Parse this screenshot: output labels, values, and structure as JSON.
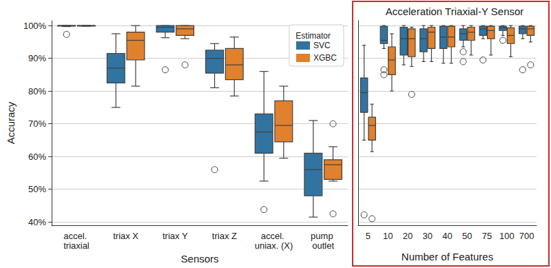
{
  "chart_data": [
    {
      "type": "boxplot",
      "x_label": "Sensors",
      "y_label": "Accuracy",
      "categories": [
        "accel. triaxial",
        "triax X",
        "triax Y",
        "triax Z",
        "accel. uniax. (X)",
        "pump outlet"
      ],
      "ylim": [
        39,
        101.5
      ],
      "yticks": [
        {
          "value": 40,
          "label": "40%"
        },
        {
          "value": 50,
          "label": "50%"
        },
        {
          "value": 60,
          "label": "60%"
        },
        {
          "value": 70,
          "label": "70%"
        },
        {
          "value": 80,
          "label": "80%"
        },
        {
          "value": 90,
          "label": "90%"
        },
        {
          "value": 100,
          "label": "100%"
        }
      ],
      "grid": true,
      "legend": "upper right",
      "legend_title": "Estimator",
      "series": [
        {
          "name": "SVC",
          "color": "#3274a1",
          "values": [
            [
              99.7,
              99.9,
              100,
              100,
              100
            ],
            [
              75,
              82.5,
              87,
              91.5,
              97.5
            ],
            [
              96.3,
              98,
              99.5,
              100,
              100
            ],
            [
              81,
              85.5,
              90,
              92.5,
              94.5
            ],
            [
              52.5,
              61,
              67.5,
              73,
              86
            ],
            [
              41.5,
              48,
              56,
              61,
              71
            ]
          ],
          "outliers": [
            [
              "accel. triaxial",
              97.3
            ],
            [
              "triax Y",
              86.5
            ],
            [
              "triax Z",
              56
            ],
            [
              "accel. uniax. (X)",
              43.8
            ]
          ]
        },
        {
          "name": "XGBC",
          "color": "#e1812c",
          "values": [
            [
              99.8,
              100,
              100,
              100,
              100
            ],
            [
              81.5,
              89.5,
              95.5,
              98,
              100
            ],
            [
              96,
              97,
              99,
              100,
              100
            ],
            [
              78.5,
              83.5,
              88,
              93,
              96.5
            ],
            [
              59.5,
              64.5,
              69.5,
              77,
              81.5
            ],
            [
              52.5,
              53,
              57.5,
              59,
              63
            ]
          ],
          "outliers": [
            [
              "triax Y",
              88
            ],
            [
              "pump outlet",
              70
            ],
            [
              "pump outlet",
              42.5
            ]
          ]
        }
      ]
    },
    {
      "type": "boxplot",
      "title": "Acceleration Triaxial-Y Sensor",
      "x_label": "Number of Features",
      "categories": [
        "5",
        "10",
        "20",
        "30",
        "40",
        "50",
        "75",
        "100",
        "700"
      ],
      "ylim": [
        39,
        101.5
      ],
      "yticks": [
        {
          "value": 40,
          "label": "40%"
        },
        {
          "value": 50,
          "label": "50%"
        },
        {
          "value": 60,
          "label": "60%"
        },
        {
          "value": 70,
          "label": "70%"
        },
        {
          "value": 80,
          "label": "80%"
        },
        {
          "value": 90,
          "label": "90%"
        },
        {
          "value": 100,
          "label": "100%"
        }
      ],
      "grid": true,
      "tick_labels": "x",
      "series": [
        {
          "name": "SVC",
          "color": "#3274a1",
          "values": [
            [
              65,
              73.5,
              79.5,
              84,
              94
            ],
            [
              93,
              94.5,
              95.5,
              99.8,
              100
            ],
            [
              88,
              91,
              96,
              99.5,
              100
            ],
            [
              89,
              92,
              96,
              99,
              100
            ],
            [
              88.5,
              93,
              96.5,
              99.8,
              100
            ],
            [
              93.5,
              95.5,
              97.5,
              99,
              100
            ],
            [
              96,
              97,
              99,
              99.8,
              100
            ],
            [
              97,
              98.5,
              99.3,
              99.8,
              100
            ],
            [
              96,
              97.5,
              99,
              99.8,
              100
            ]
          ],
          "outliers": [
            [
              "5",
              42.2
            ],
            [
              "10",
              86.5
            ],
            [
              "10",
              85
            ],
            [
              "50",
              92
            ],
            [
              "50",
              89
            ],
            [
              "75",
              89.5
            ],
            [
              "100",
              95.5
            ],
            [
              "700",
              86.5
            ]
          ]
        },
        {
          "name": "XGBC",
          "color": "#e1812c",
          "values": [
            [
              61.5,
              65,
              69.5,
              72,
              76
            ],
            [
              80,
              85,
              89.5,
              93.5,
              97.5
            ],
            [
              87.5,
              90.5,
              96,
              99,
              99.5
            ],
            [
              89,
              93,
              98,
              99.5,
              100
            ],
            [
              88.5,
              93.5,
              96.5,
              99.8,
              100
            ],
            [
              91,
              95.5,
              98,
              99.5,
              100
            ],
            [
              91,
              96,
              98.5,
              99.8,
              100
            ],
            [
              90.5,
              94.5,
              97,
              99.3,
              100
            ],
            [
              95,
              97,
              99,
              99.8,
              100
            ]
          ],
          "outliers": [
            [
              "5",
              41
            ],
            [
              "20",
              79
            ],
            [
              "700",
              88
            ]
          ]
        }
      ]
    }
  ]
}
